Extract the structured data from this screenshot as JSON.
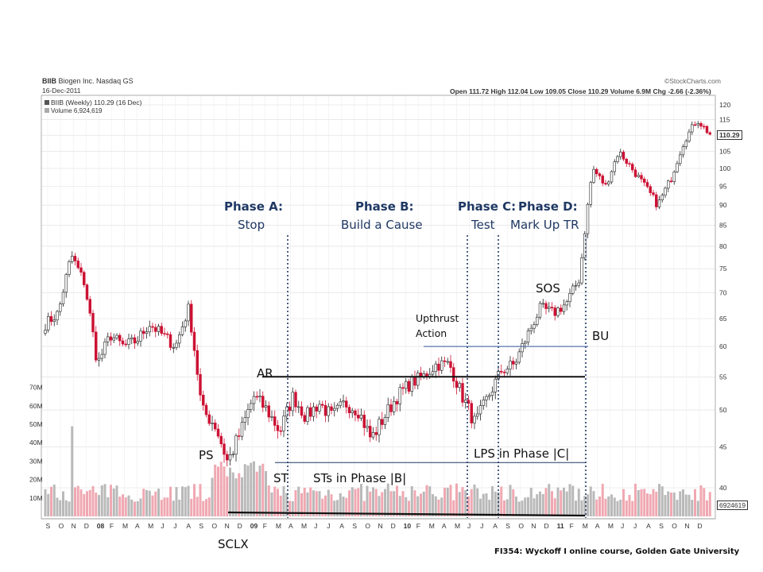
{
  "header": {
    "ticker": "BIIB",
    "company": "Biogen Inc. Nasdaq GS",
    "date": "16-Dec-2011",
    "ohlc_text": "Open 111.72  High 112.04  Low 109.05  Close 110.29  Volume 6.9M  Chg -2.66 (-2.36%)",
    "source": "©StockCharts.com",
    "legend_price": "BIIB (Weekly) 110.29 (16 Dec)",
    "legend_volume": "Volume 6,924,619",
    "last_price_tag": "110.29",
    "last_volume_tag": "6924619"
  },
  "annotations": {
    "phase_a_title": "Phase A:",
    "phase_a_sub": "Stop",
    "phase_b_title": "Phase B:",
    "phase_b_sub": "Build a Cause",
    "phase_c_title": "Phase C:",
    "phase_c_sub": "Test",
    "phase_d_title": "Phase D:",
    "phase_d_sub": "Mark Up TR",
    "ar": "AR",
    "ps": "PS",
    "sclx": "SCLX",
    "st": "ST",
    "sts": "STs in Phase |B|",
    "upthrust_1": "Upthrust",
    "upthrust_2": "Action",
    "lps": "LPS in Phase |C|",
    "sos": "SOS",
    "bu": "BU",
    "credit": "FI354: Wyckoff I online course, Golden Gate University"
  },
  "colors": {
    "up": "#222222",
    "down": "#cc1133",
    "volume_up": "#b9b9b9",
    "volume_down": "#f0a8b2",
    "phase_text": "#1f3864",
    "guide_line": "#1f3864",
    "support_resistance": "#111111",
    "grid": "#dddddd"
  },
  "chart_data": {
    "type": "candlestick",
    "title": "BIIB (Weekly)",
    "interval": "weekly",
    "y_ticks": [
      40,
      45,
      50,
      55,
      60,
      65,
      70,
      75,
      80,
      85,
      90,
      95,
      100,
      105,
      110,
      115,
      120
    ],
    "volume_ticks": [
      "10M",
      "20M",
      "30M",
      "40M",
      "50M",
      "60M",
      "70M"
    ],
    "x_ticks": [
      "S",
      "O",
      "N",
      "D",
      "08",
      "F",
      "M",
      "A",
      "M",
      "J",
      "J",
      "A",
      "S",
      "O",
      "N",
      "D",
      "09",
      "F",
      "M",
      "A",
      "M",
      "J",
      "J",
      "A",
      "S",
      "O",
      "N",
      "D",
      "10",
      "F",
      "M",
      "A",
      "M",
      "J",
      "J",
      "A",
      "S",
      "O",
      "N",
      "D",
      "11",
      "F",
      "M",
      "A",
      "M",
      "J",
      "J",
      "A",
      "S",
      "O",
      "N",
      "D"
    ],
    "price_anchors": [
      [
        "2007-09",
        64
      ],
      [
        "2007-10",
        66
      ],
      [
        "2007-11",
        78
      ],
      [
        "2007-12",
        72
      ],
      [
        "2008-01",
        57
      ],
      [
        "2008-02",
        62
      ],
      [
        "2008-03",
        60
      ],
      [
        "2008-04",
        61
      ],
      [
        "2008-05",
        64
      ],
      [
        "2008-06",
        62
      ],
      [
        "2008-07",
        60
      ],
      [
        "2008-08",
        67
      ],
      [
        "2008-09",
        50
      ],
      [
        "2008-10",
        48
      ],
      [
        "2008-11",
        43
      ],
      [
        "2008-12",
        47
      ],
      [
        "2009-01",
        52
      ],
      [
        "2009-02",
        50
      ],
      [
        "2009-03",
        47
      ],
      [
        "2009-04",
        52
      ],
      [
        "2009-05",
        49
      ],
      [
        "2009-06",
        51
      ],
      [
        "2009-07",
        49
      ],
      [
        "2009-08",
        51
      ],
      [
        "2009-09",
        50
      ],
      [
        "2009-10",
        46
      ],
      [
        "2009-11",
        49
      ],
      [
        "2009-12",
        52
      ],
      [
        "2010-01",
        54
      ],
      [
        "2010-02",
        55
      ],
      [
        "2010-03",
        57
      ],
      [
        "2010-04",
        57
      ],
      [
        "2010-05",
        52
      ],
      [
        "2010-06",
        48
      ],
      [
        "2010-07",
        52
      ],
      [
        "2010-08",
        56
      ],
      [
        "2010-09",
        57
      ],
      [
        "2010-10",
        62
      ],
      [
        "2010-11",
        67
      ],
      [
        "2010-12",
        66
      ],
      [
        "2011-01",
        68
      ],
      [
        "2011-02",
        73
      ],
      [
        "2011-03",
        100
      ],
      [
        "2011-04",
        95
      ],
      [
        "2011-05",
        105
      ],
      [
        "2011-06",
        100
      ],
      [
        "2011-07",
        95
      ],
      [
        "2011-08",
        90
      ],
      [
        "2011-09",
        97
      ],
      [
        "2011-10",
        108
      ],
      [
        "2011-11",
        115
      ],
      [
        "2011-12",
        110.29
      ]
    ],
    "events": [
      {
        "label": "PS",
        "date": "2008-10"
      },
      {
        "label": "SCLX",
        "date": "2008-11",
        "price": 41
      },
      {
        "label": "AR",
        "date": "2009-02",
        "price": 55
      },
      {
        "label": "ST",
        "date": "2009-03",
        "price": 45
      },
      {
        "label": "Upthrust Action",
        "date": "2010-04",
        "price": 60
      },
      {
        "label": "LPS",
        "date": "2010-07",
        "price": 47
      },
      {
        "label": "SOS",
        "date": "2010-11",
        "price": 66
      },
      {
        "label": "BU",
        "date": "2011-02",
        "price": 63
      }
    ],
    "phases": [
      {
        "name": "Phase A",
        "description": "Stop"
      },
      {
        "name": "Phase B",
        "description": "Build a Cause"
      },
      {
        "name": "Phase C",
        "description": "Test"
      },
      {
        "name": "Phase D",
        "description": "Mark Up TR"
      }
    ],
    "trading_range": {
      "resistance": 55,
      "support": 43
    },
    "upthrust_line": 60
  }
}
